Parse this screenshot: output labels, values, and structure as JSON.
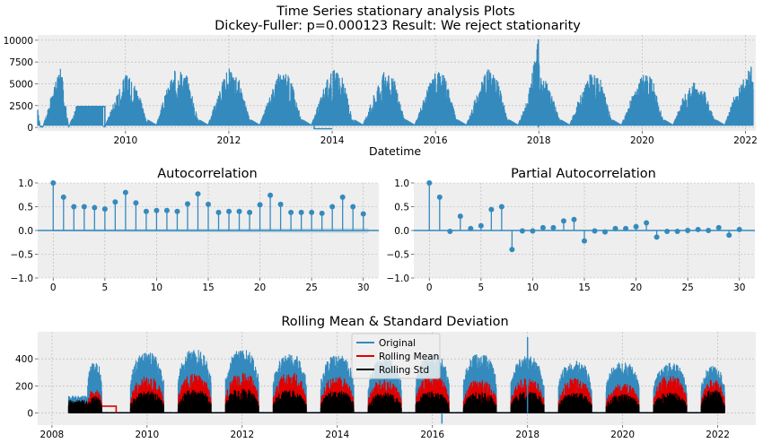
{
  "figure": {
    "title_line1": "Time Series stationary analysis Plots",
    "title_line2": "Dickey-Fuller: p=0.000123 Result: We reject stationarity"
  },
  "colors": {
    "blue": "#348ABD",
    "red": "#E00000",
    "black": "#000000",
    "panel_bg": "#EEEEEE",
    "grid": "#B2B2B2"
  },
  "chart_data": [
    {
      "id": "timeseries",
      "type": "line",
      "title": "",
      "xlabel": "Datetime",
      "ylabel": "",
      "xlim": [
        2008.3,
        2022.2
      ],
      "ylim": [
        -400,
        10600
      ],
      "xticks": [
        2010,
        2012,
        2014,
        2016,
        2018,
        2020,
        2022
      ],
      "xtick_labels": [
        "2010",
        "2012",
        "2014",
        "2016",
        "2018",
        "2020",
        "2022"
      ],
      "yticks": [
        0,
        2500,
        5000,
        7500,
        10000
      ],
      "ytick_labels": [
        "0",
        "2500",
        "5000",
        "7500",
        "10000"
      ],
      "grid": true,
      "series": [
        {
          "name": "",
          "envelope": {
            "x": [
              2008.3,
              2008.35,
              2008.4,
              2008.6,
              2008.75,
              2008.9,
              2009.05,
              2009.6,
              2009.8,
              2010.0,
              2010.2,
              2010.4,
              2010.6,
              2010.8,
              2011.0,
              2011.2,
              2011.4,
              2011.6,
              2011.8,
              2012.0,
              2012.2,
              2012.4,
              2012.6,
              2012.8,
              2013.0,
              2013.2,
              2013.4,
              2013.6,
              2013.8,
              2014.0,
              2014.2,
              2014.4,
              2014.6,
              2014.8,
              2015.0,
              2015.2,
              2015.4,
              2015.6,
              2015.8,
              2016.0,
              2016.2,
              2016.4,
              2016.6,
              2016.8,
              2017.0,
              2017.2,
              2017.4,
              2017.6,
              2017.8,
              2017.98,
              2018.02,
              2018.2,
              2018.4,
              2018.6,
              2018.8,
              2019.0,
              2019.2,
              2019.4,
              2019.6,
              2019.8,
              2020.0,
              2020.2,
              2020.4,
              2020.6,
              2020.8,
              2021.0,
              2021.2,
              2021.4,
              2021.6,
              2021.8,
              2022.0,
              2022.15
            ],
            "y": [
              2200,
              0,
              0,
              4500,
              7000,
              0,
              2400,
              0,
              3500,
              6200,
              5200,
              1000,
              300,
              4500,
              7200,
              6000,
              1000,
              300,
              4200,
              6900,
              5500,
              1000,
              300,
              3800,
              6800,
              5800,
              1000,
              300,
              4000,
              6900,
              5800,
              1000,
              300,
              3800,
              6400,
              5600,
              1000,
              300,
              3800,
              6800,
              6000,
              1000,
              300,
              3900,
              6900,
              5500,
              1000,
              300,
              3800,
              9900,
              6200,
              4800,
              1000,
              300,
              3800,
              6300,
              5800,
              1000,
              300,
              3600,
              6300,
              5800,
              1000,
              300,
              3600,
              5200,
              4400,
              1000,
              300,
              4000,
              6000,
              7800
            ]
          },
          "baseline": 200
        }
      ]
    },
    {
      "id": "acf",
      "type": "scatter",
      "title": "Autocorrelation",
      "xlabel": "",
      "ylabel": "",
      "xlim": [
        -1.5,
        31.5
      ],
      "ylim": [
        -1.0,
        1.0
      ],
      "xticks": [
        0,
        5,
        10,
        15,
        20,
        25,
        30
      ],
      "xtick_labels": [
        "0",
        "5",
        "10",
        "15",
        "20",
        "25",
        "30"
      ],
      "yticks": [
        -1.0,
        -0.5,
        0.0,
        0.5,
        1.0
      ],
      "ytick_labels": [
        "−1.0",
        "−0.5",
        "0.0",
        "0.5",
        "1.0"
      ],
      "grid": true,
      "x": [
        0,
        1,
        2,
        3,
        4,
        5,
        6,
        7,
        8,
        9,
        10,
        11,
        12,
        13,
        14,
        15,
        16,
        17,
        18,
        19,
        20,
        21,
        22,
        23,
        24,
        25,
        26,
        27,
        28,
        29,
        30
      ],
      "values": [
        1.0,
        0.7,
        0.5,
        0.5,
        0.48,
        0.45,
        0.6,
        0.8,
        0.58,
        0.4,
        0.42,
        0.42,
        0.4,
        0.56,
        0.77,
        0.55,
        0.38,
        0.4,
        0.4,
        0.38,
        0.54,
        0.74,
        0.55,
        0.38,
        0.38,
        0.38,
        0.36,
        0.5,
        0.7,
        0.5,
        0.35
      ],
      "confidence_band": {
        "x": [
          0,
          30.5
        ],
        "upper": [
          0.02,
          0.05
        ],
        "lower": [
          -0.02,
          -0.05
        ]
      }
    },
    {
      "id": "pacf",
      "type": "scatter",
      "title": "Partial Autocorrelation",
      "xlabel": "",
      "ylabel": "",
      "xlim": [
        -1.5,
        31.5
      ],
      "ylim": [
        -1.0,
        1.0
      ],
      "xticks": [
        0,
        5,
        10,
        15,
        20,
        25,
        30
      ],
      "xtick_labels": [
        "0",
        "5",
        "10",
        "15",
        "20",
        "25",
        "30"
      ],
      "yticks": [
        -1.0,
        -0.5,
        0.0,
        0.5,
        1.0
      ],
      "ytick_labels": [
        "−1.0",
        "−0.5",
        "0.0",
        "0.5",
        "1.0"
      ],
      "grid": true,
      "x": [
        0,
        1,
        2,
        3,
        4,
        5,
        6,
        7,
        8,
        9,
        10,
        11,
        12,
        13,
        14,
        15,
        16,
        17,
        18,
        19,
        20,
        21,
        22,
        23,
        24,
        25,
        26,
        27,
        28,
        29,
        30
      ],
      "values": [
        1.0,
        0.7,
        -0.02,
        0.3,
        0.04,
        0.1,
        0.44,
        0.5,
        -0.4,
        -0.01,
        -0.01,
        0.06,
        0.06,
        0.2,
        0.23,
        -0.22,
        -0.01,
        -0.03,
        0.04,
        0.04,
        0.08,
        0.16,
        -0.14,
        -0.02,
        -0.02,
        0.0,
        0.02,
        0.0,
        0.06,
        -0.1,
        0.02
      ]
    },
    {
      "id": "rolling",
      "type": "line",
      "title": "Rolling Mean & Standard Deviation",
      "xlabel": "",
      "ylabel": "",
      "xlim": [
        2007.7,
        2022.8
      ],
      "ylim": [
        -90,
        600
      ],
      "xticks": [
        2008,
        2010,
        2012,
        2014,
        2016,
        2018,
        2020,
        2022
      ],
      "xtick_labels": [
        "2008",
        "2010",
        "2012",
        "2014",
        "2016",
        "2018",
        "2020",
        "2022"
      ],
      "yticks": [
        0,
        200,
        400
      ],
      "ytick_labels": [
        "0",
        "200",
        "400"
      ],
      "grid": true,
      "legend": {
        "placement": "top-center",
        "entries": [
          "Original",
          "Rolling Mean",
          "Rolling Std"
        ]
      },
      "seasons": [
        {
          "start": 2008.75,
          "end": 2009.05,
          "orig": 390,
          "mean": 180,
          "std": 130
        },
        {
          "start": 2009.65,
          "end": 2010.35,
          "orig": 450,
          "mean": 270,
          "std": 160
        },
        {
          "start": 2010.65,
          "end": 2011.35,
          "orig": 470,
          "mean": 290,
          "std": 175
        },
        {
          "start": 2011.65,
          "end": 2012.35,
          "orig": 470,
          "mean": 300,
          "std": 180
        },
        {
          "start": 2012.65,
          "end": 2013.35,
          "orig": 440,
          "mean": 300,
          "std": 170
        },
        {
          "start": 2013.65,
          "end": 2014.35,
          "orig": 430,
          "mean": 270,
          "std": 165
        },
        {
          "start": 2014.65,
          "end": 2015.35,
          "orig": 410,
          "mean": 250,
          "std": 150
        },
        {
          "start": 2015.65,
          "end": 2016.35,
          "orig": 440,
          "mean": 280,
          "std": 165
        },
        {
          "start": 2016.65,
          "end": 2017.35,
          "orig": 440,
          "mean": 250,
          "std": 155
        },
        {
          "start": 2017.65,
          "end": 2018.35,
          "orig": 420,
          "mean": 260,
          "std": 160
        },
        {
          "start": 2018.65,
          "end": 2019.35,
          "orig": 390,
          "mean": 260,
          "std": 150
        },
        {
          "start": 2019.65,
          "end": 2020.35,
          "orig": 380,
          "mean": 220,
          "std": 140
        },
        {
          "start": 2020.65,
          "end": 2021.35,
          "orig": 370,
          "mean": 280,
          "std": 150
        },
        {
          "start": 2021.65,
          "end": 2022.15,
          "orig": 350,
          "mean": 250,
          "std": 170
        }
      ],
      "early_segment": {
        "start": 2008.35,
        "end": 2008.75,
        "orig": 130,
        "mean": 60,
        "std": 100
      },
      "flat_segment": {
        "start": 2009.05,
        "end": 2009.35,
        "mean": 50
      },
      "spikes": [
        {
          "x": 2018.0,
          "y": 560
        },
        {
          "x": 2016.2,
          "y": -80
        }
      ]
    }
  ]
}
